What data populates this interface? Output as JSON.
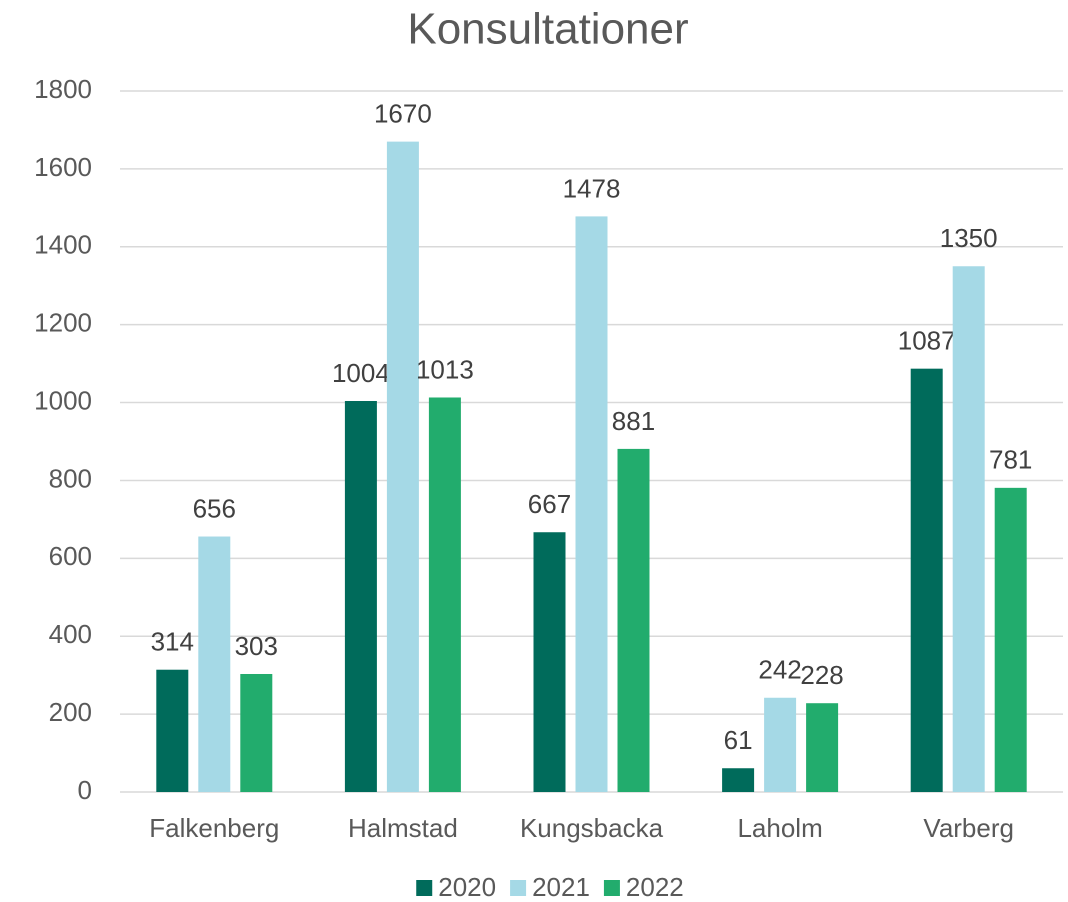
{
  "chart_data": {
    "type": "bar",
    "title": "Konsultationer",
    "categories": [
      "Falkenberg",
      "Halmstad",
      "Kungsbacka",
      "Laholm",
      "Varberg"
    ],
    "series": [
      {
        "name": "2020",
        "color": "#006b5b",
        "values": [
          314,
          1004,
          667,
          61,
          1087
        ]
      },
      {
        "name": "2021",
        "color": "#a5d9e6",
        "values": [
          656,
          1670,
          1478,
          242,
          1350
        ]
      },
      {
        "name": "2022",
        "color": "#22ac6d",
        "values": [
          303,
          1013,
          881,
          228,
          781
        ]
      }
    ],
    "ylim": [
      0,
      1800
    ],
    "yticks": [
      0,
      200,
      400,
      600,
      800,
      1000,
      1200,
      1400,
      1600,
      1800
    ],
    "grid": true,
    "legend": "bottom"
  }
}
